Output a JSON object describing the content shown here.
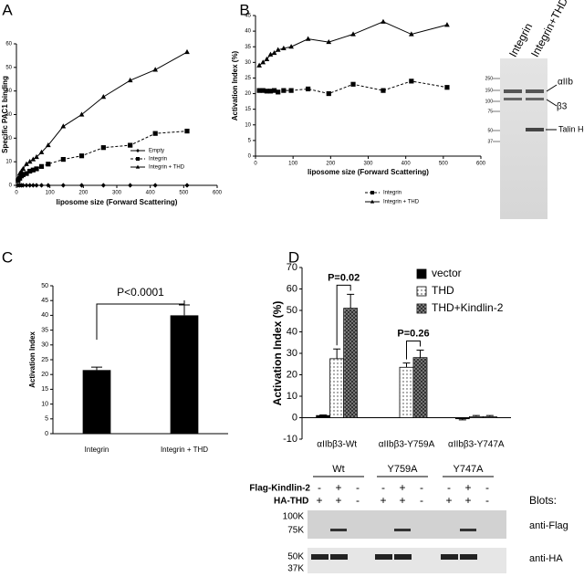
{
  "chart_data": [
    {
      "panel": "A",
      "type": "line",
      "y_label": "Specific PAC1 binding",
      "x_label": "liposome size (Forward Scattering)",
      "x": [
        5,
        10,
        15,
        20,
        30,
        40,
        50,
        60,
        75,
        95,
        140,
        195,
        260,
        340,
        415,
        510
      ],
      "series": [
        {
          "name": "Empty",
          "color": "#000000",
          "marker": "diamond",
          "dashed": false,
          "values": [
            0,
            0,
            0,
            0,
            0,
            0,
            0,
            0,
            0,
            0,
            0,
            0,
            0,
            0,
            0,
            0
          ]
        },
        {
          "name": "Integrin",
          "color": "#000000",
          "marker": "square",
          "dashed": true,
          "values": [
            2,
            3,
            4,
            4.5,
            5,
            6,
            6.5,
            7,
            8,
            9,
            11,
            12.5,
            16,
            17,
            22,
            23
          ]
        },
        {
          "name": "Integrin + THD",
          "color": "#000000",
          "marker": "triangle",
          "dashed": false,
          "values": [
            3,
            5,
            6,
            7,
            9,
            10,
            11,
            12,
            14,
            17,
            25,
            30,
            37.5,
            44.5,
            49,
            56.5
          ]
        }
      ],
      "xlim": [
        0,
        600
      ],
      "xticks": [
        0,
        100,
        200,
        300,
        400,
        500,
        600
      ],
      "ylim": [
        0,
        60
      ],
      "yticks": [
        0,
        10,
        20,
        30,
        40,
        50,
        60
      ],
      "legend": "lower right"
    },
    {
      "panel": "B",
      "type": "line",
      "y_label": "Activation Index (%)",
      "x_label": "liposome size (Forward Scattering)",
      "x": [
        10,
        20,
        30,
        40,
        50,
        60,
        75,
        95,
        140,
        195,
        260,
        340,
        415,
        510
      ],
      "series": [
        {
          "name": "Integrin",
          "color": "#000000",
          "marker": "square",
          "dashed": true,
          "values": [
            21,
            21,
            20.8,
            20.8,
            21,
            20.5,
            21,
            21,
            21.5,
            20,
            23,
            21,
            24,
            22
          ]
        },
        {
          "name": "Integrin + THD",
          "color": "#000000",
          "marker": "triangle",
          "dashed": false,
          "values": [
            29,
            30,
            31,
            32.5,
            33,
            34,
            34.5,
            35,
            37.5,
            36.5,
            39,
            43,
            39,
            42
          ]
        }
      ],
      "xlim": [
        0,
        600
      ],
      "xticks": [
        0,
        100,
        200,
        300,
        400,
        500,
        600
      ],
      "ylim": [
        0,
        45
      ],
      "yticks": [
        0,
        5,
        10,
        15,
        20,
        25,
        30,
        35,
        40,
        45
      ],
      "legend": "bottom"
    },
    {
      "panel": "C",
      "type": "bar",
      "y_label": "Activation Index",
      "categories": [
        "Integrin",
        "Integrin + THD"
      ],
      "values": [
        21.5,
        40
      ],
      "errors": [
        1,
        3.5
      ],
      "color": "#000000",
      "ylim": [
        0,
        50
      ],
      "yticks": [
        0,
        5,
        10,
        15,
        20,
        25,
        30,
        35,
        40,
        45,
        50
      ],
      "annotations": [
        "P<0.0001"
      ]
    },
    {
      "panel": "D",
      "type": "grouped_bar",
      "y_label": "Activation Index (%)",
      "categories": [
        "αIIbβ3-Wt",
        "αIIbβ3-Y759A",
        "αIIbβ3-Y747A"
      ],
      "series": [
        {
          "name": "vector",
          "color": "#000000",
          "pattern": "solid",
          "values": [
            1,
            0,
            -0.5
          ],
          "errors": [
            0.3,
            0,
            0.5
          ]
        },
        {
          "name": "THD",
          "color": "#ffffff",
          "pattern": "dots",
          "values": [
            27.5,
            23.5,
            0.5
          ],
          "errors": [
            4.5,
            2,
            0.5
          ]
        },
        {
          "name": "THD+Kindlin-2",
          "color": "#ffffff",
          "pattern": "crosshatch",
          "values": [
            51,
            28,
            0.5
          ],
          "errors": [
            6.5,
            3.5,
            0.5
          ]
        }
      ],
      "ylim": [
        -10,
        70
      ],
      "yticks": [
        -10,
        0,
        10,
        20,
        30,
        40,
        50,
        60,
        70
      ],
      "legend": "upper right",
      "annotations": [
        "P=0.02",
        "P=0.26"
      ]
    }
  ],
  "blots": {
    "b": {
      "lanes": [
        "Integrin",
        "Integrin+THD"
      ],
      "markers": [
        "250",
        "150",
        "100",
        "75",
        "50",
        "37"
      ],
      "bands": [
        "αIIb",
        "β3",
        "Talin Head"
      ]
    },
    "d": {
      "groups": [
        "Wt",
        "Y759A",
        "Y747A"
      ],
      "rows": [
        "Flag-Kindlin-2",
        "HA-THD"
      ],
      "flag_kindlin_signs": [
        "-",
        "+",
        "-",
        "-",
        "+",
        "-",
        "-",
        "+",
        "-"
      ],
      "ha_thd_signs": [
        "+",
        "+",
        "-",
        "+",
        "+",
        "-",
        "+",
        "+",
        "-"
      ],
      "blots_label": "Blots:",
      "flag_markers": [
        "100K",
        "75K"
      ],
      "ha_markers": [
        "50K",
        "37K"
      ],
      "antibodies": [
        "anti-Flag",
        "anti-HA"
      ]
    }
  }
}
